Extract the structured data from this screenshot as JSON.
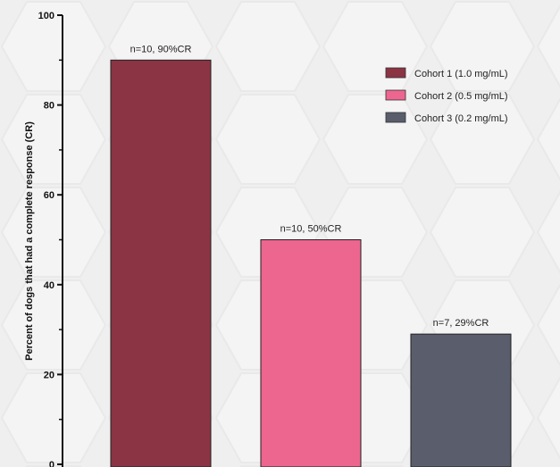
{
  "chart_data": {
    "type": "bar",
    "categories": [
      "Cohort 1 (1.0 mg/mL)",
      "Cohort 2 (0.5 mg/mL)",
      "Cohort 3 (0.2 mg/mL)"
    ],
    "values": [
      90,
      50,
      29
    ],
    "data_labels": [
      "n=10, 90%CR",
      "n=10, 50%CR",
      "n=7, 29%CR"
    ],
    "colors": [
      "#8b3444",
      "#ec6690",
      "#595d6c"
    ],
    "ylabel": "Percent of dogs that had a complete response (CR)",
    "ylim": [
      0,
      100
    ],
    "yticks": [
      0,
      20,
      40,
      60,
      80,
      100
    ],
    "legend": {
      "placement": "top-right",
      "entries": [
        "Cohort 1 (1.0 mg/mL)",
        "Cohort 2 (0.5 mg/mL)",
        "Cohort 3 (0.2 mg/mL)"
      ]
    },
    "grid": false
  }
}
